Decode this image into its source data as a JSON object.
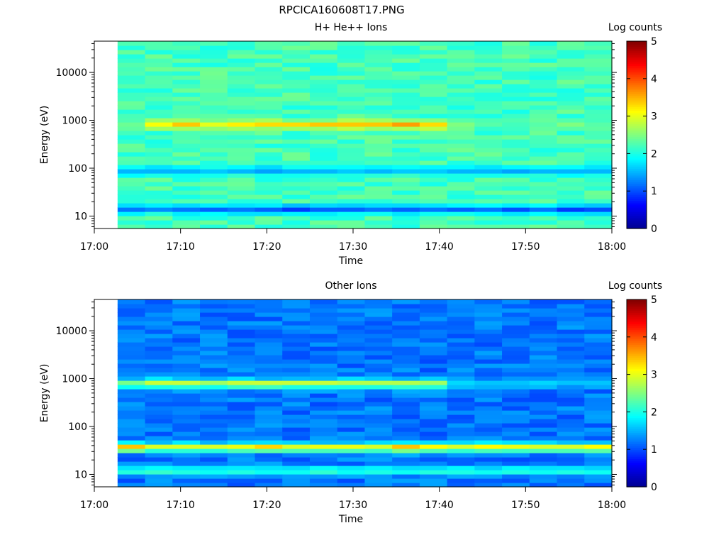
{
  "figure_title": "RPCICA160608T17.PNG",
  "colormap": [
    "#00008f",
    "#0000ff",
    "#0080ff",
    "#00ffff",
    "#80ff80",
    "#ffff00",
    "#ff8000",
    "#ff0000",
    "#800000"
  ],
  "chart_data": [
    {
      "type": "heatmap",
      "title": "H+ He++ Ions",
      "xlabel": "Time",
      "ylabel": "Energy (eV)",
      "x_ticks": [
        "17:00",
        "17:10",
        "17:20",
        "17:30",
        "17:40",
        "17:50",
        "18:00"
      ],
      "y_ticks": [
        "10",
        "100",
        "1000",
        "10000"
      ],
      "y_scale": "log",
      "ylim": [
        5.5,
        45000
      ],
      "xlim_minutes": [
        0,
        60
      ],
      "data_start_minute": 2.7,
      "data_end_minute": 60.0,
      "colorbar_label": "Log counts",
      "colorbar_ticks": [
        "0",
        "1",
        "2",
        "3",
        "4",
        "5"
      ],
      "color_range": [
        0,
        5
      ],
      "background_log_counts": 2.2,
      "bands": [
        {
          "center_ev": 820,
          "log_counts_by_column": [
            2.4,
            3.1,
            3.4,
            3.0,
            3.2,
            3.3,
            3.3,
            3.4,
            3.4,
            3.4,
            3.6,
            3.3,
            2.5,
            2.3,
            2.2,
            2.3,
            2.5,
            2.3
          ]
        },
        {
          "center_ev": 14,
          "log_counts_by_column": [
            1.2,
            1.3,
            1.2,
            1.1,
            1.2,
            1.1,
            0.9,
            1.1,
            1.1,
            1.2,
            1.1,
            1.2,
            1.1,
            1.2,
            1.0,
            1.2,
            0.9,
            1.0
          ]
        },
        {
          "center_ev": 90,
          "log_counts_by_column": [
            1.5,
            1.5,
            1.5,
            1.6,
            1.5,
            1.4,
            1.5,
            1.5,
            1.6,
            1.5,
            1.6,
            1.6,
            1.5,
            1.5,
            1.4,
            1.5,
            1.5,
            1.5
          ]
        }
      ]
    },
    {
      "type": "heatmap",
      "title": "Other Ions",
      "xlabel": "Time",
      "ylabel": "Energy (eV)",
      "x_ticks": [
        "17:00",
        "17:10",
        "17:20",
        "17:30",
        "17:40",
        "17:50",
        "18:00"
      ],
      "y_ticks": [
        "10",
        "100",
        "1000",
        "10000"
      ],
      "y_scale": "log",
      "ylim": [
        5.5,
        45000
      ],
      "xlim_minutes": [
        0,
        60
      ],
      "data_start_minute": 2.7,
      "data_end_minute": 60.0,
      "colorbar_label": "Log counts",
      "colorbar_ticks": [
        "0",
        "1",
        "2",
        "3",
        "4",
        "5"
      ],
      "color_range": [
        0,
        5
      ],
      "background_log_counts": 1.2,
      "bands": [
        {
          "center_ev": 37,
          "log_counts_by_column": [
            3.5,
            3.0,
            3.0,
            3.0,
            3.1,
            3.4,
            3.0,
            3.1,
            3.1,
            3.0,
            3.5,
            3.2,
            3.0,
            3.2,
            3.1,
            3.0,
            3.0,
            3.2
          ]
        },
        {
          "center_ev": 800,
          "log_counts_by_column": [
            2.5,
            2.9,
            2.9,
            2.7,
            2.9,
            2.9,
            2.9,
            2.9,
            2.8,
            2.8,
            2.8,
            2.7,
            1.7,
            1.6,
            1.6,
            1.7,
            1.6,
            1.6
          ]
        },
        {
          "center_ev": 12,
          "log_counts_by_column": [
            2.1,
            2.2,
            2.1,
            2.0,
            2.1,
            2.0,
            2.0,
            2.2,
            2.0,
            2.1,
            2.0,
            2.1,
            2.1,
            2.0,
            2.1,
            2.0,
            2.1,
            2.0
          ]
        }
      ]
    }
  ]
}
